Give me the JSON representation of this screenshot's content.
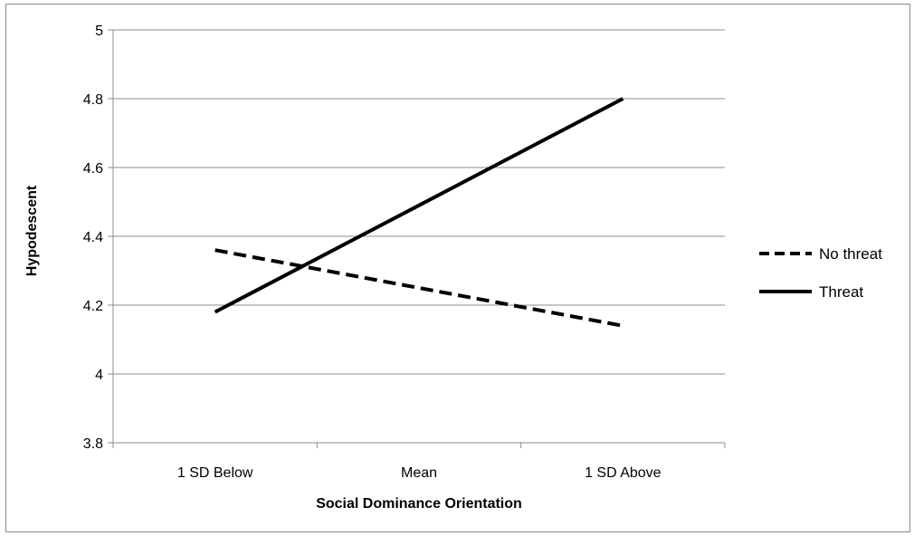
{
  "chart_data": {
    "type": "line",
    "categories": [
      "1 SD Below",
      "Mean",
      "1 SD Above"
    ],
    "series": [
      {
        "name": "No threat",
        "values": [
          4.36,
          4.25,
          4.14
        ],
        "style": "dashed",
        "color": "#000000"
      },
      {
        "name": "Threat",
        "values": [
          4.18,
          4.49,
          4.8
        ],
        "style": "solid",
        "color": "#000000"
      }
    ],
    "title": "",
    "xlabel": "Social Dominance Orientation",
    "ylabel": "Hypodescent",
    "ylim": [
      3.8,
      5
    ],
    "yticks": [
      "3.8",
      "4",
      "4.2",
      "4.4",
      "4.6",
      "4.8",
      "5"
    ],
    "grid": "horizontal",
    "legend_position": "right"
  }
}
